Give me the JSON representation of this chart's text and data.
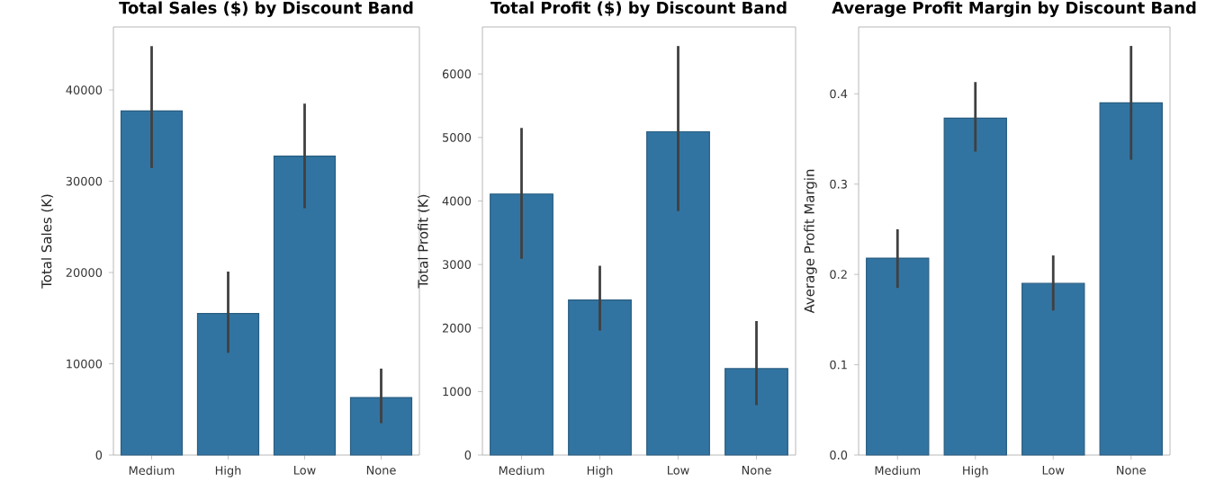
{
  "chart_data": [
    {
      "type": "bar",
      "title": "Total Sales ($) by Discount Band",
      "ylabel": "Total Sales (K)",
      "categories": [
        "Medium",
        "High",
        "Low",
        "None"
      ],
      "values": [
        37700,
        15500,
        32750,
        6300
      ],
      "errors": [
        [
          31450,
          44800
        ],
        [
          11200,
          20100
        ],
        [
          27040,
          38500
        ],
        [
          3490,
          9470
        ]
      ],
      "color": "#3274a1",
      "ylim": [
        0,
        46900
      ],
      "yticks": [
        0,
        10000,
        20000,
        30000,
        40000
      ],
      "grid": false
    },
    {
      "type": "bar",
      "title": "Total Profit ($) by Discount Band",
      "ylabel": "Total Profit (K)",
      "categories": [
        "Medium",
        "High",
        "Low",
        "None"
      ],
      "values": [
        4110,
        2440,
        5090,
        1360
      ],
      "errors": [
        [
          3090,
          5150
        ],
        [
          1960,
          2980
        ],
        [
          3840,
          6440
        ],
        [
          785,
          2110
        ]
      ],
      "color": "#3274a1",
      "ylim": [
        0,
        6740
      ],
      "yticks": [
        0,
        1000,
        2000,
        3000,
        4000,
        5000,
        6000
      ],
      "grid": false
    },
    {
      "type": "bar",
      "title": "Average Profit Margin by Discount Band",
      "ylabel": "Average Profit Margin",
      "categories": [
        "Medium",
        "High",
        "Low",
        "None"
      ],
      "values": [
        0.218,
        0.373,
        0.19,
        0.39
      ],
      "errors": [
        [
          0.185,
          0.25
        ],
        [
          0.336,
          0.413
        ],
        [
          0.16,
          0.221
        ],
        [
          0.327,
          0.453
        ]
      ],
      "color": "#3274a1",
      "ylim": [
        0,
        0.474
      ],
      "yticks": [
        {
          "value": 0,
          "label": "0.0"
        },
        0.1,
        0.2,
        0.3,
        0.4
      ],
      "grid": false
    }
  ]
}
